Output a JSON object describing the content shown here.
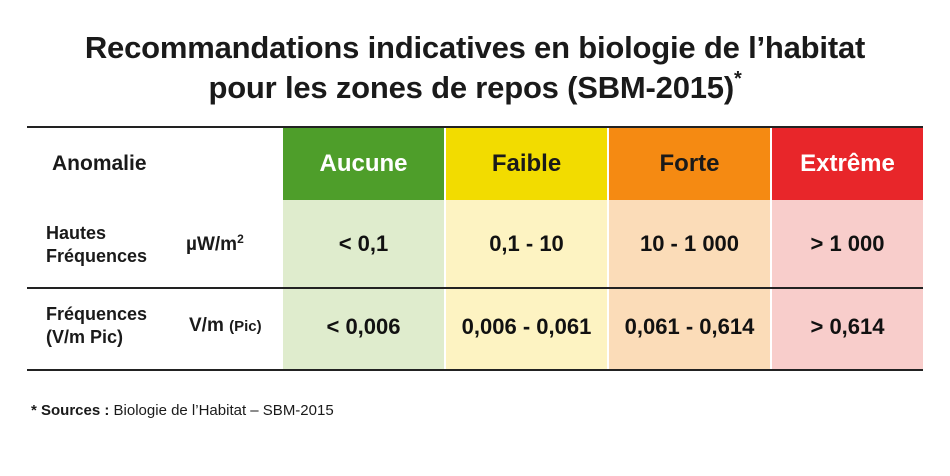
{
  "title": {
    "line1": "Recommandations indicatives en biologie de l’habitat",
    "line2": "pour les zones de repos (SBM-2015)",
    "asterisk": "*"
  },
  "table": {
    "header_label": "Anomalie",
    "columns": [
      {
        "label": "Aucune",
        "head_bg": "#4e9e2a",
        "head_fg": "#ffffff",
        "body_bg": "#dfeccd"
      },
      {
        "label": "Faible",
        "head_bg": "#f2dc00",
        "head_fg": "#1a1a1a",
        "body_bg": "#fdf3c2"
      },
      {
        "label": "Forte",
        "head_bg": "#f58a12",
        "head_fg": "#1a1a1a",
        "body_bg": "#fbdcb8"
      },
      {
        "label": "Extrême",
        "head_bg": "#e8262a",
        "head_fg": "#ffffff",
        "body_bg": "#f8cdcb"
      }
    ],
    "rows": [
      {
        "label_line1": "Hautes",
        "label_line2": "Fréquences",
        "unit": "µW/m",
        "unit_sup": "2",
        "unit_small": "",
        "values": [
          "< 0,1",
          "0,1 - 10",
          "10 - 1 000",
          "> 1 000"
        ]
      },
      {
        "label_line1": "Fréquences",
        "label_line2": "(V/m Pic)",
        "unit": "V/m",
        "unit_sup": "",
        "unit_small": "(Pic)",
        "values": [
          "< 0,006",
          "0,006 - 0,061",
          "0,061 - 0,614",
          "> 0,614"
        ]
      }
    ]
  },
  "footnote": {
    "label": "* Sources :",
    "text": " Biologie de l’Habitat – SBM-2015"
  }
}
